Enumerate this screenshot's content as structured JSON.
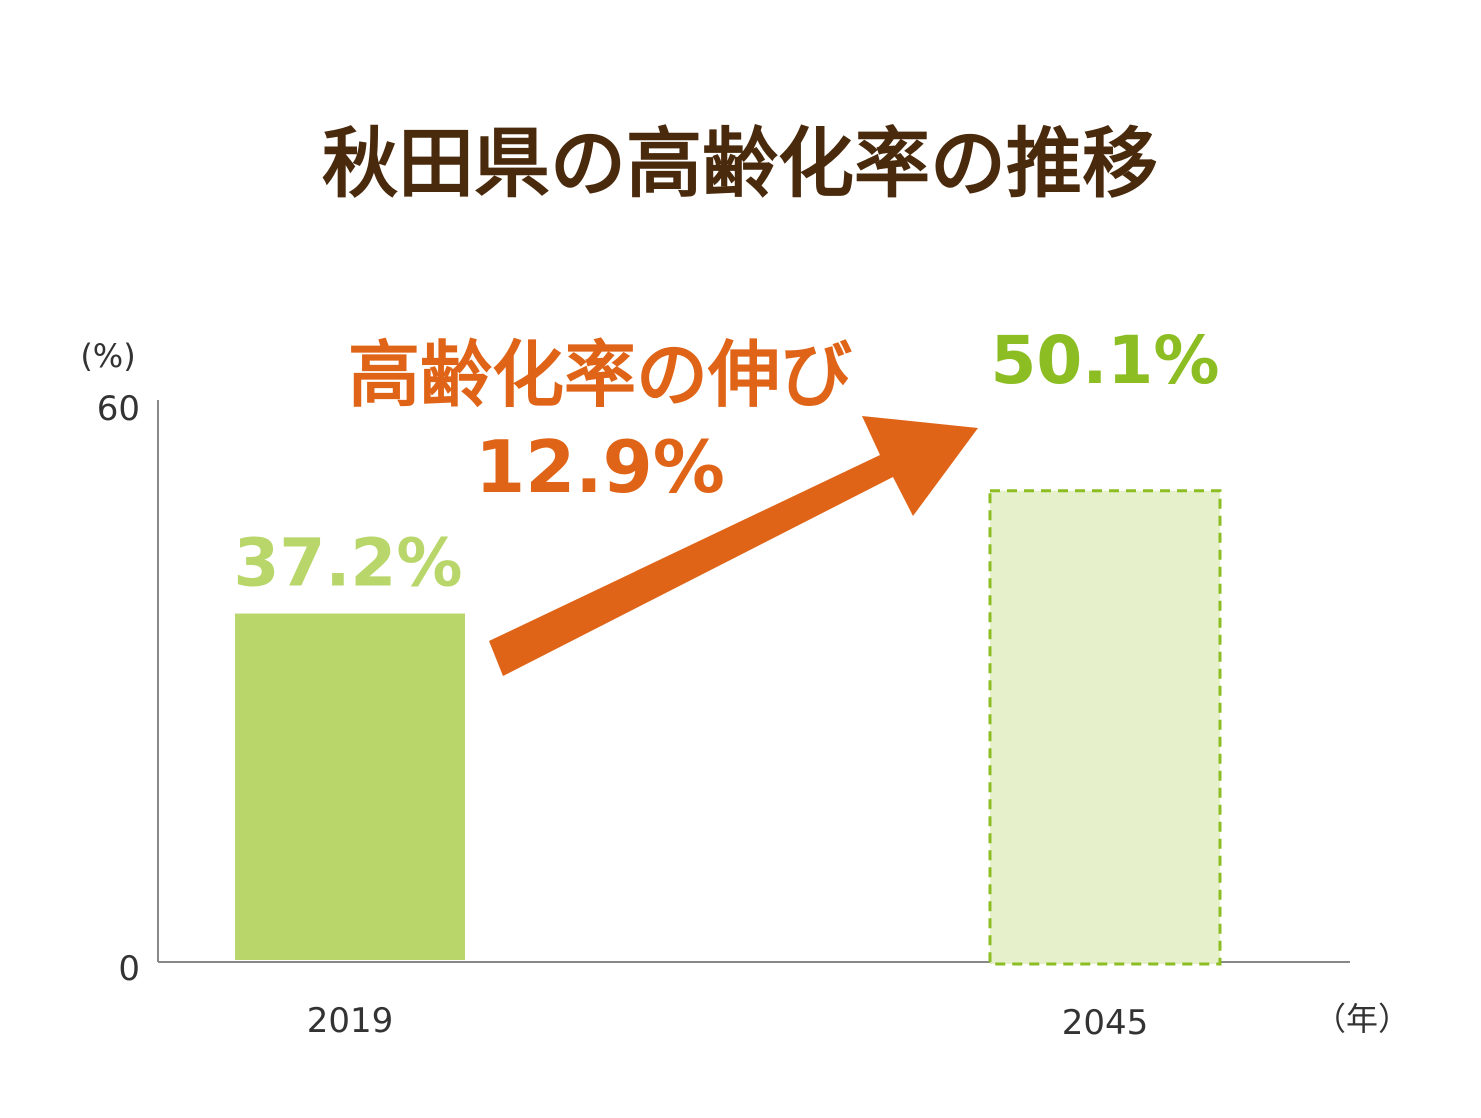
{
  "chart_data": {
    "type": "bar",
    "title": "秋田県の高齢化率の推移",
    "categories": [
      "2019",
      "2045"
    ],
    "values": [
      37.2,
      50.1
    ],
    "value_labels": [
      "37.2%",
      "50.1%"
    ],
    "ylabel": "(%)",
    "xlabel": "（年）",
    "ylim": [
      0,
      60
    ],
    "y_ticks": [
      "0",
      "60"
    ],
    "grid": false,
    "annotation": {
      "line1": "高齢化率の伸び",
      "line2": "12.9%"
    },
    "colors": {
      "bar_actual": "#b8d66a",
      "bar_projected_fill": "#e6f1cc",
      "bar_projected_border": "#8cbd22",
      "label_actual": "#b8d66a",
      "label_projected": "#8cbd22",
      "arrow": "#e06417",
      "title": "#4a2a0c"
    }
  }
}
